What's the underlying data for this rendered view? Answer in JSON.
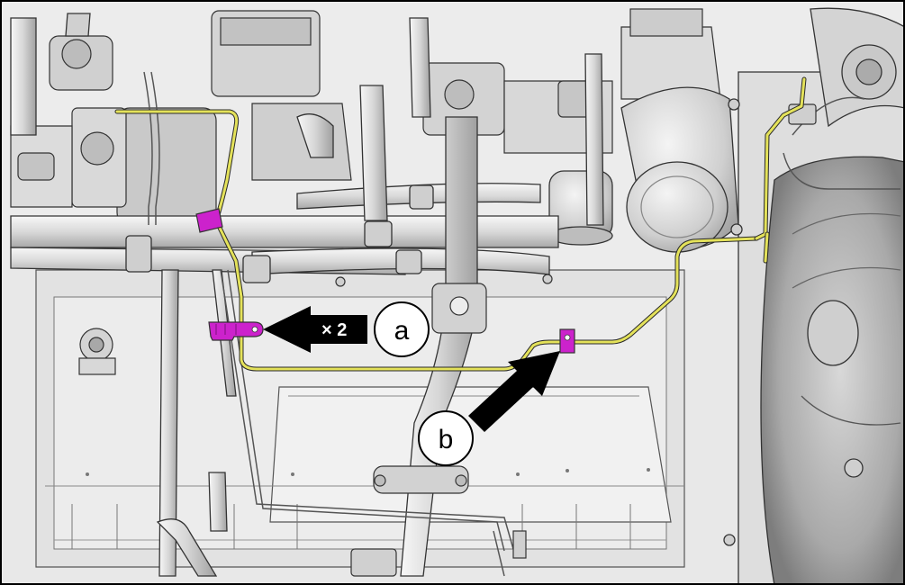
{
  "callouts": {
    "a": {
      "letter": "a",
      "multiplier": "× 2"
    },
    "b": {
      "letter": "b"
    }
  },
  "colors": {
    "background": "#efefef",
    "line": "#2a2a2a",
    "harness_wire": "#e4e25a",
    "clip_highlight": "#cc22cc",
    "arrow_fill": "#000000",
    "callout_circle": "#ffffff"
  }
}
